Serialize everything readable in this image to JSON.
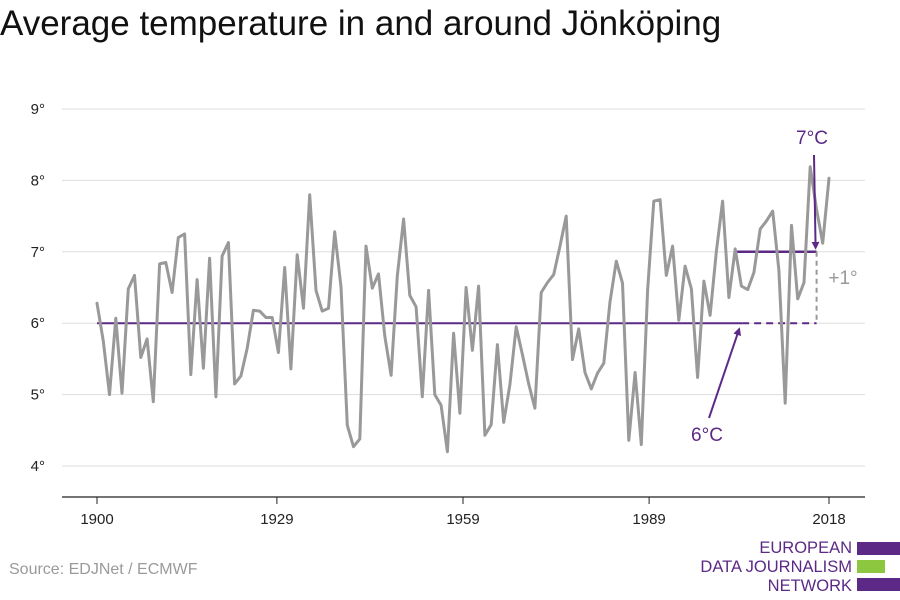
{
  "title": "Average temperature in and around Jönköping",
  "source": "Source: EDJNet / ECMWF",
  "colors": {
    "series": "#999999",
    "accent": "#5c2a86",
    "grid": "#dddddd",
    "axis": "#222222",
    "logo_green": "#8dc63f"
  },
  "logo": {
    "line1": "EUROPEAN",
    "line2": "DATA JOURNALISM",
    "line3": "NETWORK"
  },
  "chart_data": {
    "type": "line",
    "title": "Average temperature in and around Jönköping",
    "xlabel": "",
    "ylabel": "",
    "xlim": [
      1900,
      2018
    ],
    "ylim": [
      4,
      9
    ],
    "x_ticks": [
      1900,
      1929,
      1959,
      1989,
      2018
    ],
    "y_ticks": [
      4,
      5,
      6,
      7,
      8,
      9
    ],
    "y_tick_labels": [
      "4°",
      "5°",
      "6°",
      "7°",
      "8°",
      "9°"
    ],
    "grid": true,
    "series": [
      {
        "x_start": 1900,
        "x_end": 2018,
        "values": [
          6.28,
          5.75,
          5.0,
          6.07,
          5.02,
          6.48,
          6.67,
          5.52,
          5.78,
          4.9,
          6.83,
          6.85,
          6.43,
          7.2,
          7.25,
          5.28,
          6.61,
          5.37,
          6.91,
          4.97,
          6.94,
          7.13,
          5.15,
          5.26,
          5.65,
          6.18,
          6.17,
          6.08,
          6.08,
          5.59,
          6.78,
          5.36,
          6.96,
          6.21,
          7.8,
          6.46,
          6.17,
          6.21,
          7.28,
          6.51,
          4.57,
          4.27,
          4.38,
          7.08,
          6.49,
          6.69,
          5.82,
          5.27,
          6.66,
          7.46,
          6.39,
          6.23,
          4.97,
          6.46,
          5.0,
          4.85,
          4.2,
          5.86,
          4.74,
          6.5,
          5.62,
          6.52,
          4.43,
          4.58,
          5.7,
          4.61,
          5.14,
          5.95,
          5.56,
          5.15,
          4.81,
          6.43,
          6.57,
          6.68,
          7.08,
          7.5,
          5.49,
          5.92,
          5.31,
          5.08,
          5.3,
          5.44,
          6.3,
          6.87,
          6.56,
          4.36,
          5.31,
          4.3,
          6.46,
          7.71,
          7.73,
          6.67,
          7.08,
          6.04,
          6.8,
          6.48,
          5.24,
          6.59,
          6.11,
          7.01,
          7.71,
          6.36,
          7.04,
          6.52,
          6.47,
          6.71,
          7.32,
          7.43,
          7.57,
          6.74,
          4.88,
          7.37,
          6.34,
          6.57,
          8.19,
          7.6,
          7.12,
          8.03
        ]
      }
    ],
    "reference_lines": [
      {
        "label": "6°C",
        "value": 6.0
      },
      {
        "label": "7°C",
        "value": 7.0
      }
    ],
    "difference_label": "+1°"
  }
}
